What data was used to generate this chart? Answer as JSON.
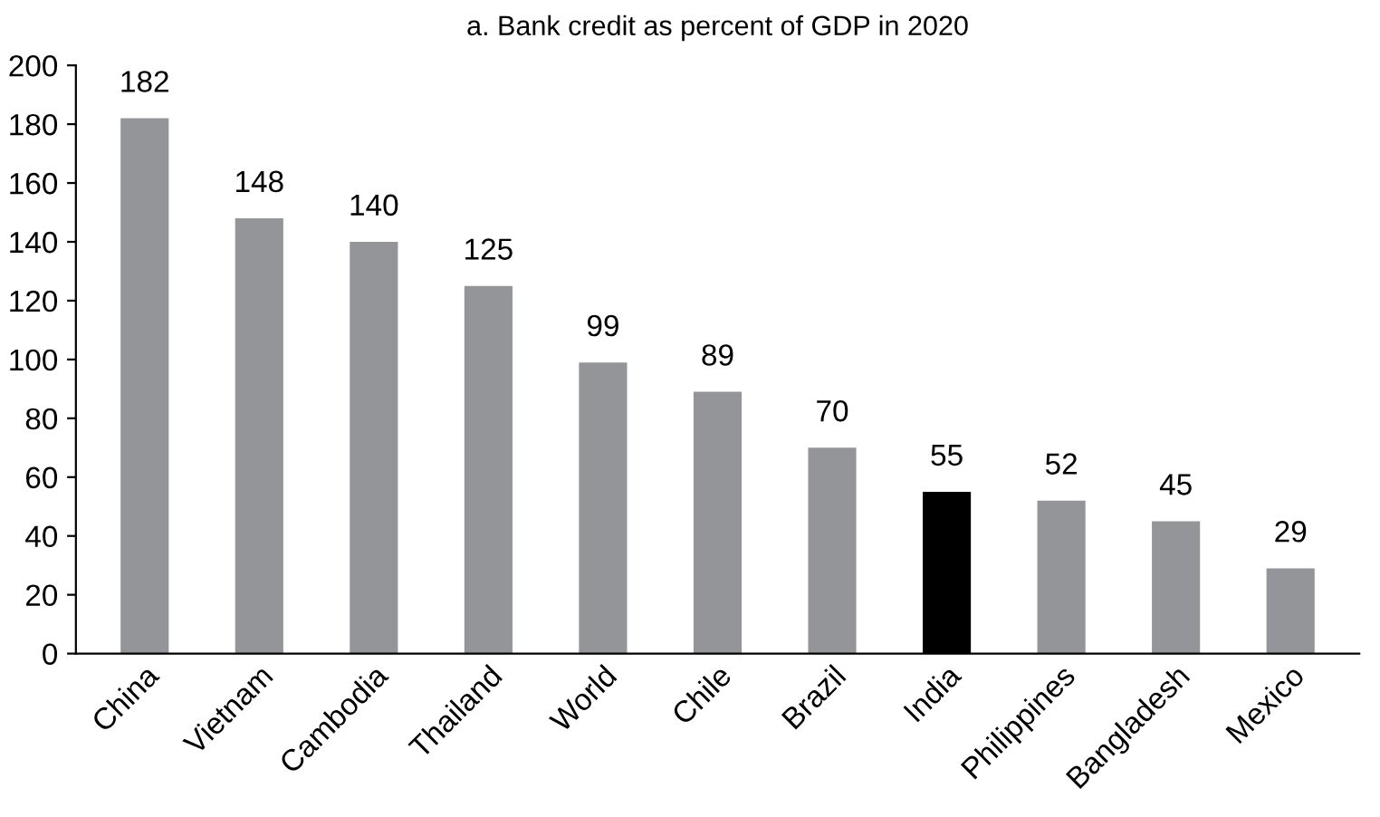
{
  "chart_data": {
    "type": "bar",
    "title": "a. Bank credit as percent of GDP in 2020",
    "categories": [
      "China",
      "Vietnam",
      "Cambodia",
      "Thailand",
      "World",
      "Chile",
      "Brazil",
      "India",
      "Philippines",
      "Bangladesh",
      "Mexico"
    ],
    "values": [
      182,
      148,
      140,
      125,
      99,
      89,
      70,
      55,
      52,
      45,
      29
    ],
    "colors": [
      "#939598",
      "#939598",
      "#939598",
      "#939598",
      "#939598",
      "#939598",
      "#939598",
      "#000000",
      "#939598",
      "#939598",
      "#939598"
    ],
    "ylim": [
      0,
      200
    ],
    "yticks": [
      0,
      20,
      40,
      60,
      80,
      100,
      120,
      140,
      160,
      180,
      200
    ],
    "data_labels": true,
    "grid": false,
    "legend": false
  }
}
